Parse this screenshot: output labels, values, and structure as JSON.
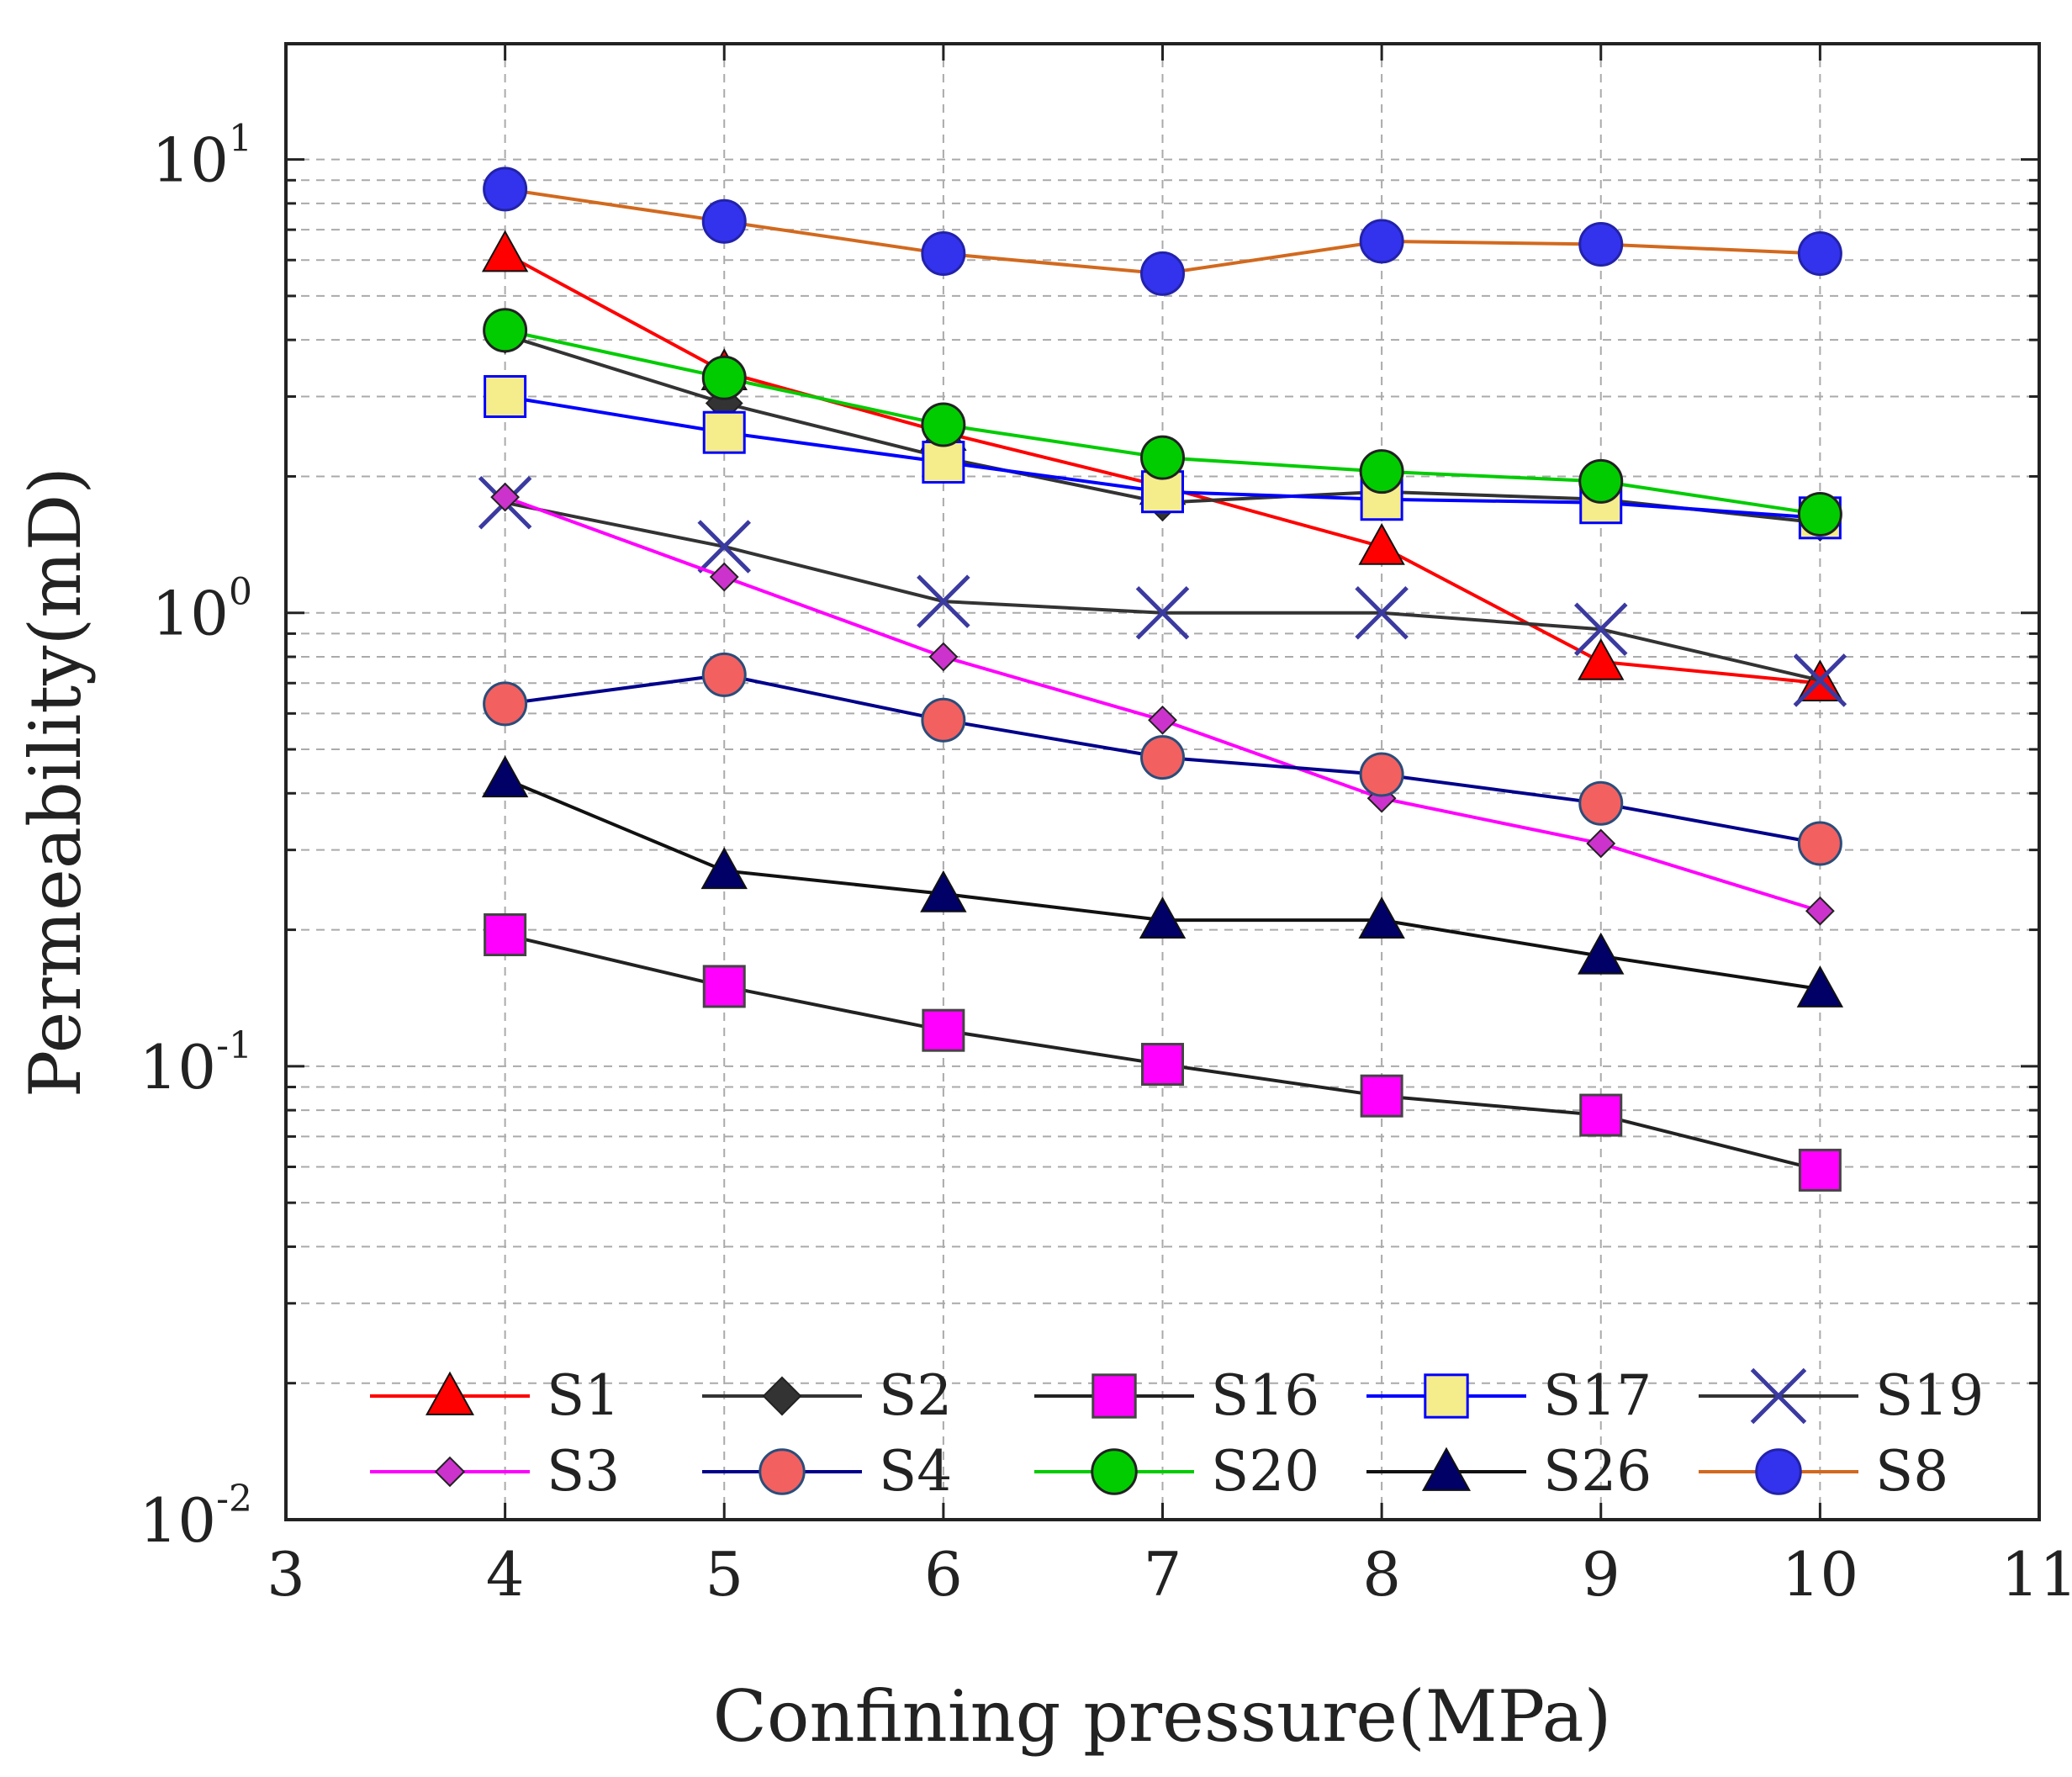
{
  "chart_data": {
    "type": "line",
    "xlabel": "Confining pressure(MPa)",
    "ylabel": "Permeability(mD)",
    "xlim": [
      3,
      11
    ],
    "ylim": [
      0.01,
      18
    ],
    "yscale": "log",
    "grid": true,
    "x_ticks": [
      "3",
      "4",
      "5",
      "6",
      "7",
      "8",
      "9",
      "10",
      "11"
    ],
    "y_ticks": [
      {
        "base": "10",
        "exp": "-2",
        "value": 0.01
      },
      {
        "base": "10",
        "exp": "-1",
        "value": 0.1
      },
      {
        "base": "10",
        "exp": "0",
        "value": 1
      },
      {
        "base": "10",
        "exp": "1",
        "value": 10
      }
    ],
    "x": [
      4,
      5,
      6,
      7,
      8,
      9,
      10
    ],
    "series": [
      {
        "name": "S1",
        "color": "#ff0000",
        "marker": "triangle",
        "marker_fill": "#ff0000",
        "values": [
          6.2,
          3.4,
          2.5,
          1.9,
          1.4,
          0.78,
          0.7
        ]
      },
      {
        "name": "S2",
        "color": "#333333",
        "marker": "diamond",
        "marker_fill": "#333333",
        "values": [
          4.1,
          2.9,
          2.2,
          1.75,
          1.85,
          1.78,
          1.58
        ]
      },
      {
        "name": "S16",
        "color": "#222222",
        "marker": "square",
        "marker_fill": "#ff00ff",
        "marker_stroke": "#444444",
        "values": [
          0.195,
          0.15,
          0.12,
          0.101,
          0.086,
          0.078,
          0.059
        ]
      },
      {
        "name": "S17",
        "color": "#0000ff",
        "marker": "square",
        "marker_fill": "#f5ec8c",
        "marker_stroke": "#0000ff",
        "values": [
          3.0,
          2.5,
          2.15,
          1.85,
          1.78,
          1.75,
          1.62
        ]
      },
      {
        "name": "S19",
        "color": "#333333",
        "marker": "cross",
        "marker_stroke": "#3a3aa0",
        "values": [
          1.75,
          1.4,
          1.06,
          1.0,
          1.0,
          0.92,
          0.71
        ]
      },
      {
        "name": "S3",
        "color": "#ff00ff",
        "marker": "diamond",
        "marker_fill": "#cc33cc",
        "values": [
          1.8,
          1.2,
          0.8,
          0.58,
          0.39,
          0.31,
          0.22
        ]
      },
      {
        "name": "S4",
        "color": "#00008b",
        "marker": "circle",
        "marker_fill": "#f26060",
        "marker_stroke": "#2a4d7a",
        "values": [
          0.63,
          0.73,
          0.58,
          0.48,
          0.44,
          0.38,
          0.31
        ]
      },
      {
        "name": "S20",
        "color": "#00cc00",
        "marker": "circle",
        "marker_fill": "#00cc00",
        "values": [
          4.2,
          3.3,
          2.6,
          2.2,
          2.05,
          1.95,
          1.65
        ]
      },
      {
        "name": "S26",
        "color": "#111111",
        "marker": "triangle",
        "marker_fill": "#000066",
        "values": [
          0.43,
          0.27,
          0.24,
          0.21,
          0.21,
          0.175,
          0.148
        ]
      },
      {
        "name": "S8",
        "color": "#d2691e",
        "marker": "circle",
        "marker_fill": "#3333ee",
        "marker_stroke": "#2222aa",
        "values": [
          8.6,
          7.3,
          6.2,
          5.6,
          6.6,
          6.5,
          6.2
        ]
      }
    ],
    "legend": {
      "placement": "bottom",
      "columns": 5
    }
  }
}
